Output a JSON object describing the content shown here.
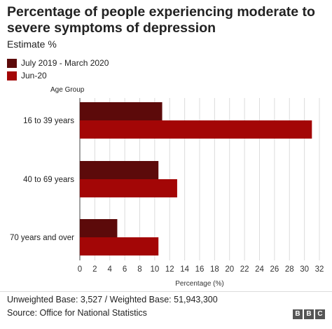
{
  "chart_data": {
    "type": "bar",
    "orientation": "horizontal",
    "title": "Percentage of people experiencing moderate to severe symptoms of depression",
    "subtitle": "Estimate %",
    "category_axis_label": "Age Group",
    "xlabel": "Percentage (%)",
    "categories": [
      "16 to 39 years",
      "40 to 69 years",
      "70 years and over"
    ],
    "series": [
      {
        "name": "July 2019 - March 2020",
        "values": [
          11,
          10.5,
          5
        ],
        "color": "#5c0a0a"
      },
      {
        "name": "Jun-20",
        "values": [
          31,
          13,
          10.5
        ],
        "color": "#a30606"
      }
    ],
    "xlim": [
      0,
      32
    ],
    "xticks": [
      "0",
      "2",
      "4",
      "6",
      "8",
      "10",
      "12",
      "14",
      "16",
      "18",
      "20",
      "22",
      "24",
      "26",
      "28",
      "30",
      "32"
    ],
    "grid": true,
    "legend_position": "top-left"
  },
  "footer": {
    "base_note": "Unweighted Base: 3,527 / Weighted Base: 51,943,300",
    "source": "Source: Office for National Statistics",
    "logo": [
      "B",
      "B",
      "C"
    ]
  }
}
